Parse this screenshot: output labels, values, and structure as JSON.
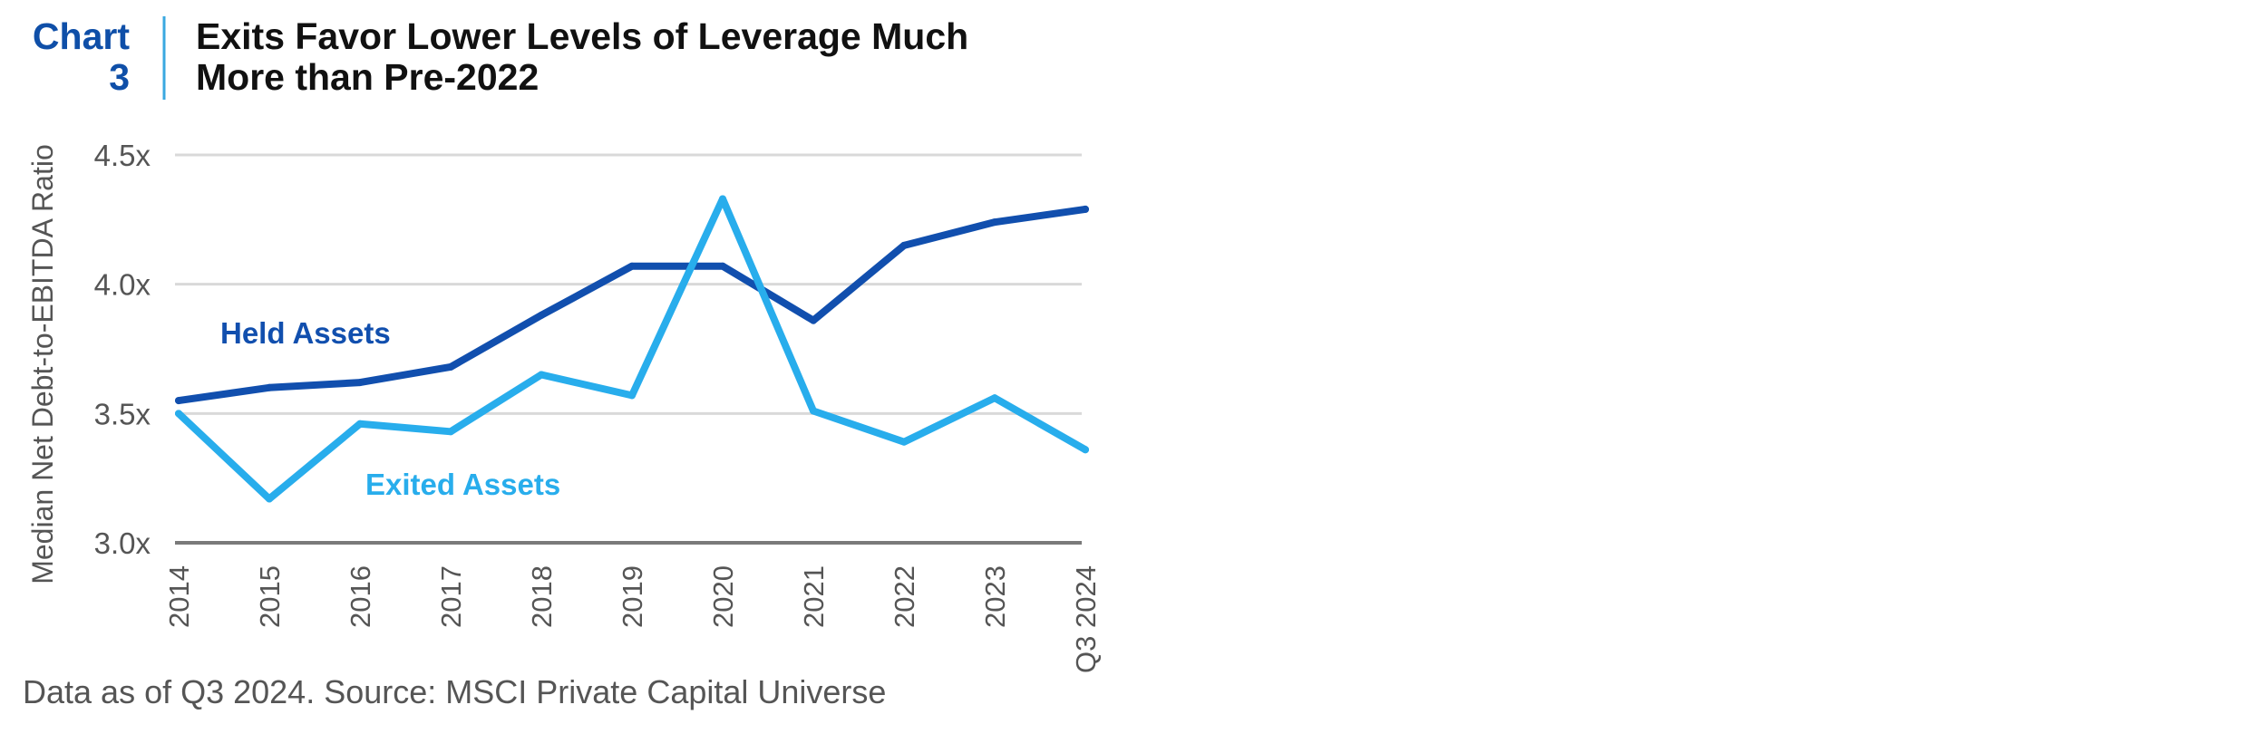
{
  "header": {
    "chart_word": "Chart",
    "chart_number": "3",
    "title_line1": "Exits Favor Lower Levels of Leverage Much",
    "title_line2": "More than Pre-2022"
  },
  "footer": {
    "source": "Data as of Q3 2024. Source: MSCI Private Capital Universe"
  },
  "colors": {
    "brand_blue": "#0f4fa8",
    "held": "#114fae",
    "exited": "#28adec",
    "grid": "#d9d9d9",
    "axis": "#7a7a7a",
    "text_gray": "#555555",
    "divider": "#3aa8e0"
  },
  "chart_data": {
    "type": "line",
    "title": "Exits Favor Lower Levels of Leverage Much More than Pre-2022",
    "xlabel": "",
    "ylabel": "Median Net Debt-to-EBITDA Ratio",
    "categories": [
      "2014",
      "2015",
      "2016",
      "2017",
      "2018",
      "2019",
      "2020",
      "2021",
      "2022",
      "2023",
      "Q3 2024"
    ],
    "ylim": [
      3.0,
      4.5
    ],
    "yticks": [
      {
        "value": 3.0,
        "label": "3.0x"
      },
      {
        "value": 3.5,
        "label": "3.5x"
      },
      {
        "value": 4.0,
        "label": "4.0x"
      },
      {
        "value": 4.5,
        "label": "4.5x"
      }
    ],
    "grid": true,
    "legend": "inline-labels",
    "series": [
      {
        "name": "Held Assets",
        "color": "#114fae",
        "values": [
          3.55,
          3.6,
          3.62,
          3.68,
          3.88,
          4.07,
          4.07,
          3.86,
          4.15,
          4.24,
          4.29
        ]
      },
      {
        "name": "Exited Assets",
        "color": "#28adec",
        "values": [
          3.5,
          3.17,
          3.46,
          3.43,
          3.65,
          3.57,
          4.33,
          3.51,
          3.39,
          3.56,
          3.36
        ]
      }
    ]
  }
}
